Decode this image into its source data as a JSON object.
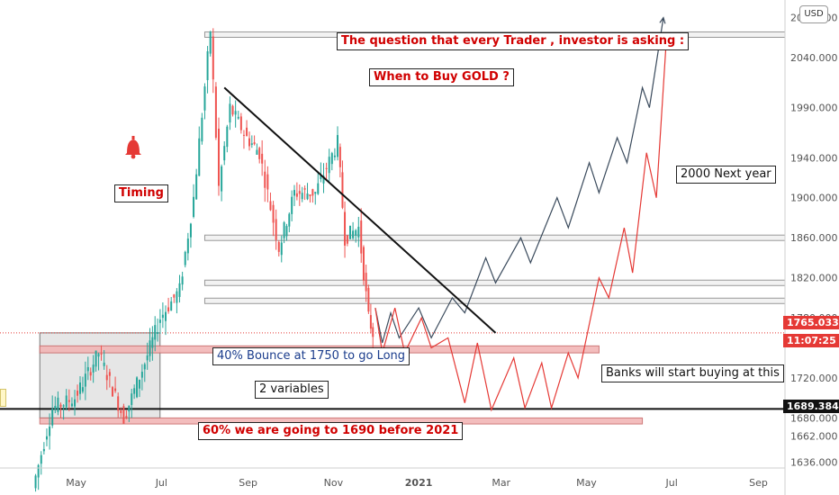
{
  "currency_badge": "USD",
  "annotations": {
    "question": "The question that every Trader , investor is asking :",
    "when_to_buy": "When to Buy GOLD ?",
    "timing": "Timing",
    "next_year": "2000 Next year",
    "bounce": "40% Bounce at 1750 to go Long",
    "variables": "2 variables",
    "drop": "60% we are going to 1690 before 2021",
    "banks": "Banks will start buying at this"
  },
  "price_tags": {
    "current_price": "1765.033",
    "countdown": "11:07:25",
    "level_price": "1689.384"
  },
  "colors": {
    "bull": "#26a69a",
    "bear": "#ef5350",
    "tag_red": "#e53935",
    "zone_fill": "#f2b6b6",
    "bell": "#e53935"
  },
  "chart_data": {
    "type": "candlestick",
    "title": "",
    "xlabel": "",
    "ylabel": "",
    "y_ticks": [
      "1636.000",
      "1662.000",
      "1680.000",
      "1720.000",
      "1780.000",
      "1820.000",
      "1860.000",
      "1900.000",
      "1940.000",
      "1990.000",
      "2040.000",
      "2080.000"
    ],
    "x_ticks": [
      "May",
      "Jul",
      "Sep",
      "Nov",
      "2021",
      "Mar",
      "May",
      "Jul",
      "Sep"
    ],
    "price_points": [
      {
        "date": "2020-04-01",
        "price": 1610
      },
      {
        "date": "2020-04-15",
        "price": 1690
      },
      {
        "date": "2020-05-01",
        "price": 1700
      },
      {
        "date": "2020-05-18",
        "price": 1745
      },
      {
        "date": "2020-06-05",
        "price": 1680
      },
      {
        "date": "2020-06-20",
        "price": 1735
      },
      {
        "date": "2020-07-01",
        "price": 1780
      },
      {
        "date": "2020-07-15",
        "price": 1808
      },
      {
        "date": "2020-07-25",
        "price": 1900
      },
      {
        "date": "2020-08-06",
        "price": 2067
      },
      {
        "date": "2020-08-12",
        "price": 1910
      },
      {
        "date": "2020-08-20",
        "price": 1990
      },
      {
        "date": "2020-09-01",
        "price": 1960
      },
      {
        "date": "2020-09-10",
        "price": 1945
      },
      {
        "date": "2020-09-24",
        "price": 1850
      },
      {
        "date": "2020-10-05",
        "price": 1905
      },
      {
        "date": "2020-10-20",
        "price": 1905
      },
      {
        "date": "2020-11-05",
        "price": 1955
      },
      {
        "date": "2020-11-10",
        "price": 1860
      },
      {
        "date": "2020-11-20",
        "price": 1870
      },
      {
        "date": "2020-11-27",
        "price": 1780
      },
      {
        "date": "2020-11-30",
        "price": 1765
      }
    ],
    "projection_black": [
      {
        "date": "2020-12-01",
        "price": 1790
      },
      {
        "date": "2020-12-06",
        "price": 1755
      },
      {
        "date": "2020-12-12",
        "price": 1785
      },
      {
        "date": "2020-12-18",
        "price": 1760
      },
      {
        "date": "2021-01-01",
        "price": 1790
      },
      {
        "date": "2021-01-10",
        "price": 1760
      },
      {
        "date": "2021-01-25",
        "price": 1800
      },
      {
        "date": "2021-02-03",
        "price": 1785
      },
      {
        "date": "2021-02-18",
        "price": 1840
      },
      {
        "date": "2021-02-25",
        "price": 1815
      },
      {
        "date": "2021-03-15",
        "price": 1860
      },
      {
        "date": "2021-03-22",
        "price": 1835
      },
      {
        "date": "2021-04-10",
        "price": 1900
      },
      {
        "date": "2021-04-18",
        "price": 1870
      },
      {
        "date": "2021-05-03",
        "price": 1935
      },
      {
        "date": "2021-05-10",
        "price": 1905
      },
      {
        "date": "2021-05-23",
        "price": 1960
      },
      {
        "date": "2021-05-30",
        "price": 1935
      },
      {
        "date": "2021-06-10",
        "price": 2010
      },
      {
        "date": "2021-06-15",
        "price": 1990
      },
      {
        "date": "2021-06-25",
        "price": 2080
      }
    ],
    "projection_red": [
      {
        "date": "2020-12-01",
        "price": 1790
      },
      {
        "date": "2020-12-06",
        "price": 1745
      },
      {
        "date": "2020-12-15",
        "price": 1790
      },
      {
        "date": "2020-12-22",
        "price": 1745
      },
      {
        "date": "2021-01-03",
        "price": 1780
      },
      {
        "date": "2021-01-10",
        "price": 1750
      },
      {
        "date": "2021-01-22",
        "price": 1760
      },
      {
        "date": "2021-02-03",
        "price": 1695
      },
      {
        "date": "2021-02-12",
        "price": 1755
      },
      {
        "date": "2021-02-22",
        "price": 1688
      },
      {
        "date": "2021-03-10",
        "price": 1740
      },
      {
        "date": "2021-03-18",
        "price": 1690
      },
      {
        "date": "2021-03-30",
        "price": 1735
      },
      {
        "date": "2021-04-06",
        "price": 1690
      },
      {
        "date": "2021-04-18",
        "price": 1745
      },
      {
        "date": "2021-04-25",
        "price": 1720
      },
      {
        "date": "2021-05-10",
        "price": 1820
      },
      {
        "date": "2021-05-17",
        "price": 1800
      },
      {
        "date": "2021-05-28",
        "price": 1870
      },
      {
        "date": "2021-06-03",
        "price": 1825
      },
      {
        "date": "2021-06-13",
        "price": 1945
      },
      {
        "date": "2021-06-20",
        "price": 1900
      },
      {
        "date": "2021-06-27",
        "price": 2055
      }
    ],
    "trendline": [
      {
        "date": "2020-08-15",
        "price": 2010
      },
      {
        "date": "2021-02-25",
        "price": 1765
      }
    ],
    "horizontal_levels": [
      2063,
      1860,
      1815,
      1797,
      1689
    ],
    "demand_zone": {
      "date_from": "2020-04-05",
      "date_to": "2020-06-30",
      "price_from": 1680,
      "price_to": 1765
    },
    "red_zones": [
      {
        "date_from": "2020-04-05",
        "date_to": "2021-05-10",
        "price_from": 1745,
        "price_to": 1752
      },
      {
        "date_from": "2020-04-05",
        "date_to": "2021-06-10",
        "price_from": 1674,
        "price_to": 1680
      }
    ],
    "last_price": 1765.033,
    "level_price": 1689.384,
    "legend": "none",
    "grid": false
  }
}
